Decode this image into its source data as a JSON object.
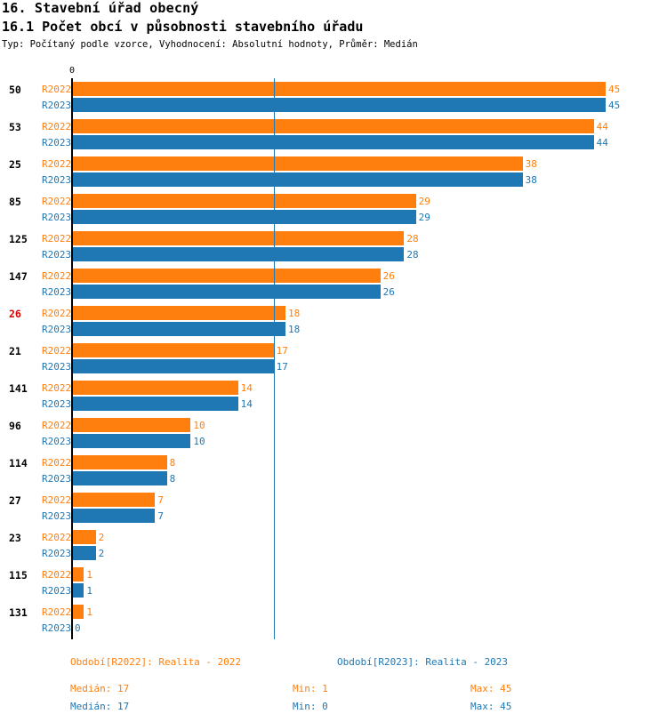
{
  "header": {
    "title": "16. Stavební úřad obecný",
    "subtitle": "16.1 Počet obcí v působnosti stavebního úřadu",
    "meta": "Typ: Počítaný podle vzorce, Vyhodnocení: Absolutní hodnoty, Průměr: Medián"
  },
  "colors": {
    "R2022": "#ff7f0e",
    "R2023": "#1f77b4",
    "highlight": "#e00000"
  },
  "chart_data": {
    "type": "bar",
    "orientation": "horizontal",
    "axis_zero_label": "0",
    "xlim": [
      0,
      45
    ],
    "median_line": 17,
    "highlighted_category": "26",
    "categories": [
      "50",
      "53",
      "25",
      "85",
      "125",
      "147",
      "26",
      "21",
      "141",
      "96",
      "114",
      "27",
      "23",
      "115",
      "131"
    ],
    "series": [
      {
        "name": "R2022",
        "values": [
          45,
          44,
          38,
          29,
          28,
          26,
          18,
          17,
          14,
          10,
          8,
          7,
          2,
          1,
          1
        ]
      },
      {
        "name": "R2023",
        "values": [
          45,
          44,
          38,
          29,
          28,
          26,
          18,
          17,
          14,
          10,
          8,
          7,
          2,
          1,
          0
        ]
      }
    ]
  },
  "legend": {
    "r2022": "Období[R2022]: Realita - 2022",
    "r2023": "Období[R2023]: Realita - 2023",
    "r2022_median": "Medián: 17",
    "r2022_min": "Min: 1",
    "r2022_max": "Max: 45",
    "r2023_median": "Medián: 17",
    "r2023_min": "Min: 0",
    "r2023_max": "Max: 45"
  }
}
